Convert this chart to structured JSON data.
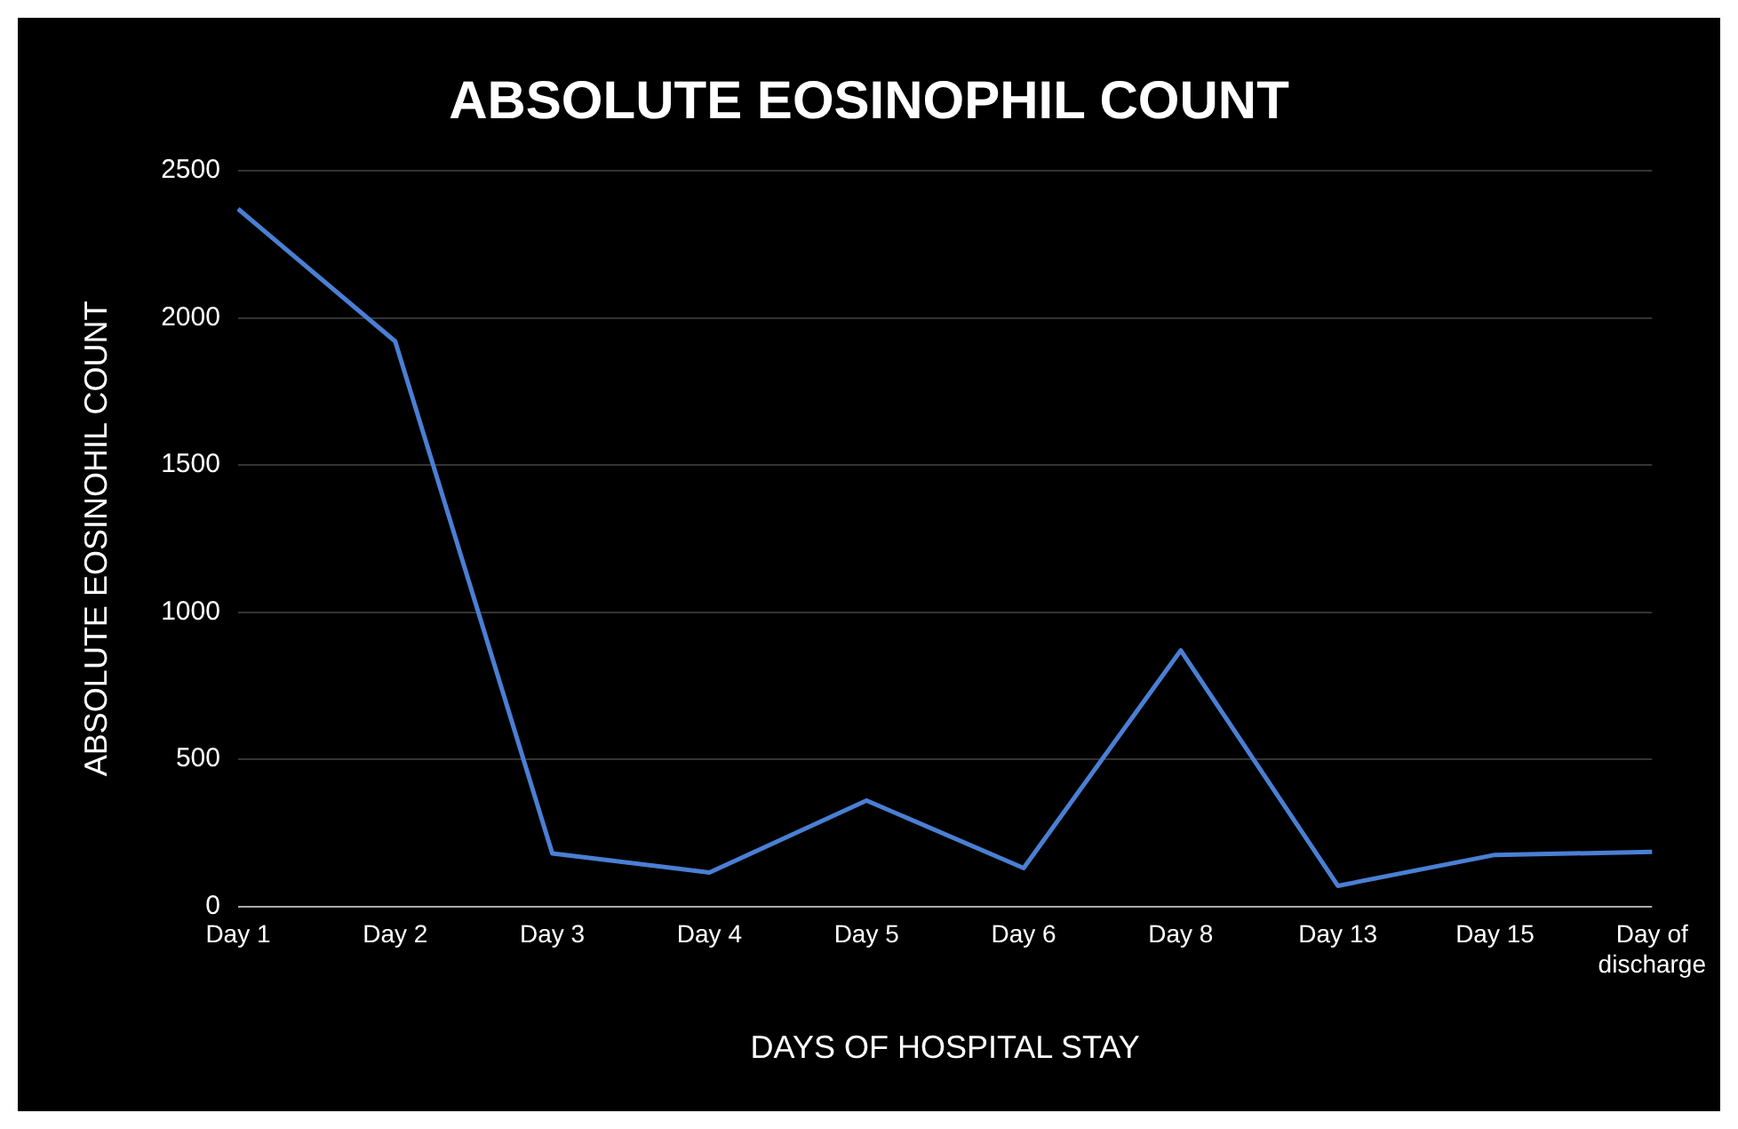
{
  "chart_data": {
    "type": "line",
    "title": "ABSOLUTE EOSINOPHIL COUNT",
    "xlabel": "DAYS OF HOSPITAL STAY",
    "ylabel": "ABSOLUTE EOSINOHIL COUNT",
    "categories": [
      "Day 1",
      "Day 2",
      "Day 3",
      "Day 4",
      "Day 5",
      "Day 6",
      "Day 8",
      "Day 13",
      "Day 15",
      "Day of discharge"
    ],
    "series": [
      {
        "color": "#4a7fd4",
        "values": [
          2370,
          1920,
          180,
          115,
          360,
          130,
          870,
          70,
          175,
          185
        ]
      }
    ],
    "ylim": [
      0,
      2500
    ],
    "yticks": [
      0,
      500,
      1000,
      1500,
      2000,
      2500
    ],
    "grid": "y",
    "legend": false,
    "marker": "none",
    "line_style": "solid"
  }
}
